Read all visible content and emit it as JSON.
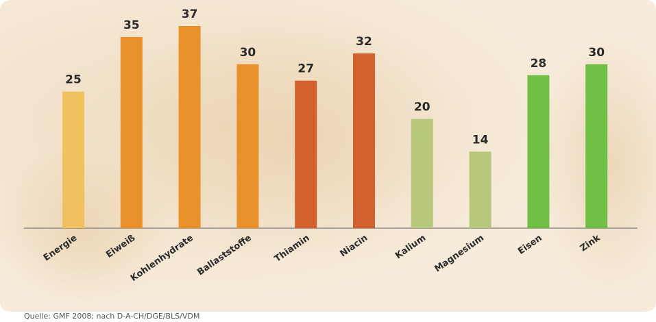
{
  "chart_data": {
    "type": "bar",
    "categories": [
      "Energie",
      "Eiweiß",
      "Kohlenhydrate",
      "Ballaststoffe",
      "Thiamin",
      "Niacin",
      "Kalium",
      "Magnesium",
      "Eisen",
      "Zink"
    ],
    "values": [
      25,
      35,
      37,
      30,
      27,
      32,
      20,
      14,
      28,
      30
    ],
    "colors": [
      "#f2c15f",
      "#e8902a",
      "#e8902a",
      "#e8902a",
      "#d2612e",
      "#d2612e",
      "#b7c77c",
      "#b7c77c",
      "#6fbf45",
      "#6fbf45"
    ],
    "source": "Quelle: GMF 2008; nach D-A-CH/DGE/BLS/VDM"
  }
}
